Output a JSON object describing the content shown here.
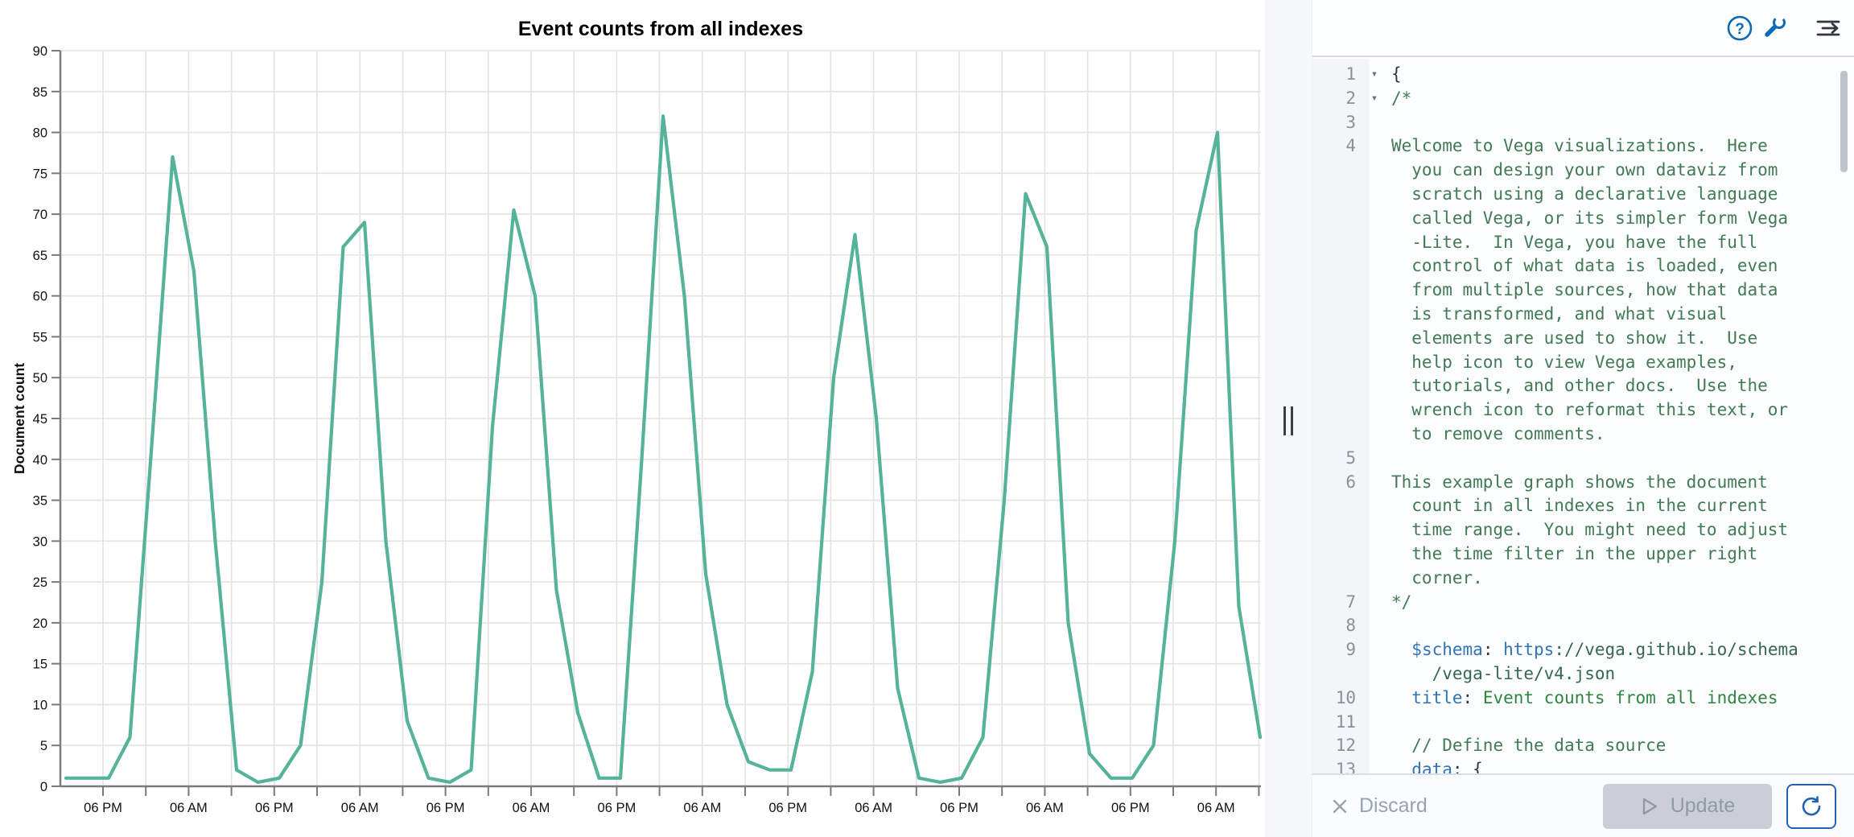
{
  "chart_data": {
    "type": "line",
    "title": "Event counts from all indexes",
    "xlabel": "",
    "ylabel": "Document count",
    "ylim": [
      0,
      90
    ],
    "y_tick_step": 5,
    "y_tick_labels": [
      "0",
      "5",
      "10",
      "15",
      "20",
      "25",
      "30",
      "35",
      "40",
      "45",
      "50",
      "55",
      "60",
      "65",
      "70",
      "75",
      "80",
      "85",
      "90"
    ],
    "x_tick_labels": [
      "06 PM",
      "06 AM",
      "06 PM",
      "06 AM",
      "06 PM",
      "06 AM",
      "06 PM",
      "06 AM",
      "06 PM",
      "06 AM",
      "06 PM",
      "06 AM",
      "06 PM",
      "06 AM"
    ],
    "x_label_interval": "12 hours",
    "x_gridline_interval": "6 hours",
    "point_interval": "3 hours",
    "grid": true,
    "legend": "none",
    "line_color": "#54b399",
    "series": [
      {
        "name": "Document count",
        "values": [
          1,
          1,
          1,
          6,
          41,
          77,
          63,
          30,
          2,
          0.5,
          1,
          5,
          25,
          66,
          69,
          30,
          8,
          1,
          0.5,
          2,
          44,
          70.5,
          60,
          24,
          9,
          1,
          1,
          40,
          82,
          60,
          26,
          10,
          3,
          2,
          2,
          14,
          50,
          67.5,
          45,
          12,
          1,
          0.5,
          1,
          6,
          35,
          72.5,
          66,
          20,
          4,
          1,
          1,
          5,
          30,
          68,
          80,
          22,
          6
        ]
      }
    ]
  },
  "divider": {
    "type": "drag-handle"
  },
  "toolbar": {
    "accent_color": "#0b6cb5",
    "icons": [
      {
        "name": "help",
        "glyph": "?"
      },
      {
        "name": "wrench"
      },
      {
        "name": "align-right-arrow"
      }
    ]
  },
  "editor": {
    "language": "hjson vega-lite spec",
    "token_colors": {
      "plain": "#30353c",
      "comment": "#417a54",
      "key": "#2f74b5",
      "string": "#2e8540",
      "url": "#35694f"
    },
    "rows": [
      {
        "n": "1",
        "fold": true,
        "segs": [
          [
            "p",
            "{"
          ]
        ]
      },
      {
        "n": "2",
        "fold": true,
        "segs": [
          [
            "c",
            "/*"
          ]
        ]
      },
      {
        "n": "3",
        "segs": []
      },
      {
        "n": "4",
        "segs": [
          [
            "c",
            "Welcome to Vega visualizations.  Here"
          ]
        ]
      },
      {
        "segs": [
          [
            "c",
            "  you can design your own dataviz from"
          ]
        ]
      },
      {
        "segs": [
          [
            "c",
            "  scratch using a declarative language"
          ]
        ]
      },
      {
        "segs": [
          [
            "c",
            "  called Vega, or its simpler form Vega"
          ]
        ]
      },
      {
        "segs": [
          [
            "c",
            "  -Lite.  In Vega, you have the full"
          ]
        ]
      },
      {
        "segs": [
          [
            "c",
            "  control of what data is loaded, even"
          ]
        ]
      },
      {
        "segs": [
          [
            "c",
            "  from multiple sources, how that data"
          ]
        ]
      },
      {
        "segs": [
          [
            "c",
            "  is transformed, and what visual"
          ]
        ]
      },
      {
        "segs": [
          [
            "c",
            "  elements are used to show it.  Use"
          ]
        ]
      },
      {
        "segs": [
          [
            "c",
            "  help icon to view Vega examples,"
          ]
        ]
      },
      {
        "segs": [
          [
            "c",
            "  tutorials, and other docs.  Use the"
          ]
        ]
      },
      {
        "segs": [
          [
            "c",
            "  wrench icon to reformat this text, or"
          ]
        ]
      },
      {
        "segs": [
          [
            "c",
            "  to remove comments."
          ]
        ]
      },
      {
        "n": "5",
        "segs": []
      },
      {
        "n": "6",
        "segs": [
          [
            "c",
            "This example graph shows the document"
          ]
        ]
      },
      {
        "segs": [
          [
            "c",
            "  count in all indexes in the current"
          ]
        ]
      },
      {
        "segs": [
          [
            "c",
            "  time range.  You might need to adjust"
          ]
        ]
      },
      {
        "segs": [
          [
            "c",
            "  the time filter in the upper right"
          ]
        ]
      },
      {
        "segs": [
          [
            "c",
            "  corner."
          ]
        ]
      },
      {
        "n": "7",
        "segs": [
          [
            "c",
            "*/"
          ]
        ]
      },
      {
        "n": "8",
        "segs": []
      },
      {
        "n": "9",
        "segs": [
          [
            "p",
            "  "
          ],
          [
            "k",
            "$schema"
          ],
          [
            "p",
            ": "
          ],
          [
            "k",
            "https"
          ],
          [
            "u",
            "://vega.github.io/schema"
          ]
        ]
      },
      {
        "segs": [
          [
            "u",
            "    /vega-lite/v4.json"
          ]
        ]
      },
      {
        "n": "10",
        "segs": [
          [
            "p",
            "  "
          ],
          [
            "k",
            "title"
          ],
          [
            "p",
            ": "
          ],
          [
            "s",
            "Event counts from all indexes"
          ]
        ]
      },
      {
        "n": "11",
        "segs": []
      },
      {
        "n": "12",
        "segs": [
          [
            "p",
            "  "
          ],
          [
            "c",
            "// Define the data source"
          ]
        ]
      },
      {
        "n": "13",
        "segs": [
          [
            "p",
            "  "
          ],
          [
            "k",
            "data"
          ],
          [
            "p",
            ": "
          ],
          [
            "p",
            "{"
          ]
        ]
      }
    ],
    "scrollbar_visible": true
  },
  "actions": {
    "discard_label": "Discard",
    "update_label": "Update",
    "update_enabled": false
  }
}
